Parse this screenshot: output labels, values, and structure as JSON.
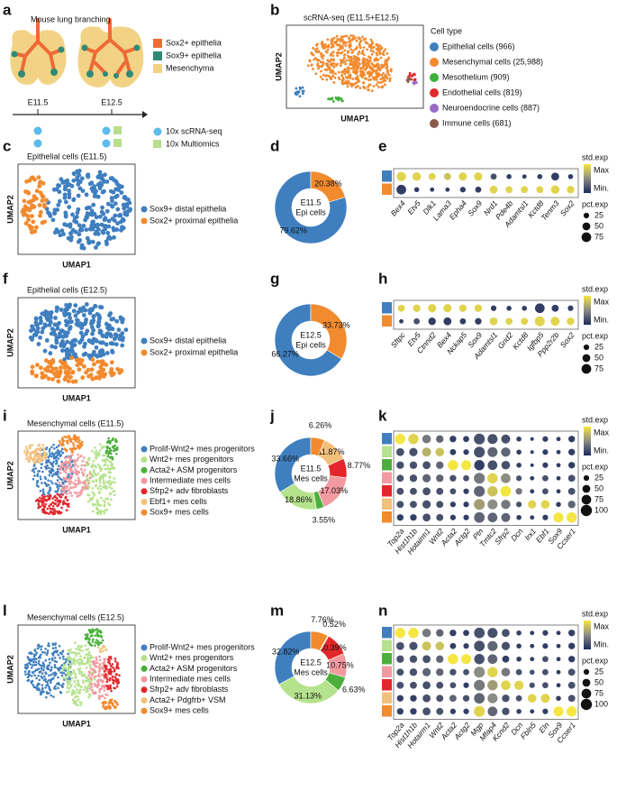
{
  "panel_labels": [
    "a",
    "b",
    "c",
    "d",
    "e",
    "f",
    "g",
    "h",
    "i",
    "j",
    "k",
    "l",
    "m",
    "n"
  ],
  "schematic": {
    "title": "Mouse lung branching",
    "legend": [
      {
        "label": "Sox2+ epithelia",
        "color": "#ee6a36"
      },
      {
        "label": "Sox9+ epithelia",
        "color": "#2f8a78"
      },
      {
        "label": "Mesenchyma",
        "color": "#f2d385"
      }
    ],
    "timepoints": [
      "E11.5",
      "E12.5"
    ],
    "assays": [
      {
        "label": "10x scRNA-seq",
        "color": "#5bbbea"
      },
      {
        "label": "10x Multiomics",
        "color": "#b8de8e"
      }
    ]
  },
  "umap_panels": [
    {
      "title": "scRNA-seq (E11.5+E12.5)",
      "x_label": "UMAP1",
      "y_label": "UMAP2",
      "legend_title": "Cell type",
      "legend": [
        {
          "label": "Epithelial cells (966)",
          "color": "#3f7fbf"
        },
        {
          "label": "Mesenchymal cells (25,988)",
          "color": "#f28a2e"
        },
        {
          "label": "Mesothelium (909)",
          "color": "#3fae3a"
        },
        {
          "label": "Endothelial cells (819)",
          "color": "#e02b2b"
        },
        {
          "label": "Neuroendocrine cells (887)",
          "color": "#9b6bc8"
        },
        {
          "label": "Immune cells (681)",
          "color": "#8c5a4a"
        }
      ]
    },
    {
      "title": "Epithelial cells (E11.5)",
      "x_label": "UMAP1",
      "y_label": "UMAP2",
      "legend": [
        {
          "label": "Sox9+ distal epithelia",
          "color": "#3f7fbf"
        },
        {
          "label": "Sox2+ proximal epithelia",
          "color": "#f28a2e"
        }
      ]
    },
    {
      "title": "Epithelial cells (E12.5)",
      "x_label": "UMAP1",
      "y_label": "UMAP2",
      "legend": [
        {
          "label": "Sox9+ distal epithelia",
          "color": "#3f7fbf"
        },
        {
          "label": "Sox2+ proximal epithelia",
          "color": "#f28a2e"
        }
      ]
    },
    {
      "title": "Mesenchymal cells (E11.5)",
      "x_label": "UMAP1",
      "y_label": "UMAP2",
      "legend": [
        {
          "label": "Prolif-Wnt2+ mes progenitors",
          "color": "#3f7fbf"
        },
        {
          "label": "Wnt2+ mes progenitors",
          "color": "#b5e28c"
        },
        {
          "label": "Acta2+ ASM progenitors",
          "color": "#4caf3c"
        },
        {
          "label": "Intermediate mes cells",
          "color": "#f29aa0"
        },
        {
          "label": "Sfrp2+ adv fibroblasts",
          "color": "#e3262b"
        },
        {
          "label": "Ebf1+ mes cells",
          "color": "#f3c07a"
        },
        {
          "label": "Sox9+ mes cells",
          "color": "#f28a2e"
        }
      ]
    },
    {
      "title": "Mesenchymal cells (E12.5)",
      "x_label": "UMAP1",
      "y_label": "UMAP2",
      "legend": [
        {
          "label": "Prolif-Wnt2+ mes progenitors",
          "color": "#3f7fbf"
        },
        {
          "label": "Wnt2+ mes progenitors",
          "color": "#b5e28c"
        },
        {
          "label": "Acta2+ ASM progenitors",
          "color": "#4caf3c"
        },
        {
          "label": "Intermediate mes cells",
          "color": "#f29aa0"
        },
        {
          "label": "Sfrp2+ adv fibroblasts",
          "color": "#e3262b"
        },
        {
          "label": "Acta2+ Pdgfrb+ VSM",
          "color": "#f3c07a"
        },
        {
          "label": "Sox9+ mes cells",
          "color": "#f28a2e"
        }
      ]
    }
  ],
  "chart_data": [
    {
      "type": "donut",
      "center_label": [
        "E11.5",
        "Epi cells"
      ],
      "values": [
        79.62,
        20.38
      ],
      "value_labels": [
        "79.62%",
        "20.38%"
      ],
      "colors": [
        "#3f7fbf",
        "#f28a2e"
      ]
    },
    {
      "type": "dotplot",
      "genes": [
        "Bex4",
        "Etv5",
        "Dlk1",
        "Lama3",
        "Epha4",
        "Sox9",
        "Nrd1",
        "Pde4b",
        "Adamtsl1",
        "Kctd8",
        "Tenm3",
        "Sox2"
      ],
      "row_colors": [
        "#3f7fbf",
        "#f28a2e"
      ],
      "expr": [
        [
          0.9,
          0.9,
          0.9,
          0.8,
          0.9,
          0.9,
          0.2,
          0.1,
          0.1,
          0.1,
          0.1,
          0.1
        ],
        [
          0.1,
          0.1,
          0.1,
          0.1,
          0.1,
          0.1,
          0.9,
          0.9,
          0.9,
          0.9,
          0.9,
          0.9
        ]
      ],
      "pct": [
        [
          70,
          60,
          40,
          40,
          55,
          55,
          30,
          20,
          15,
          20,
          50,
          20
        ],
        [
          75,
          20,
          15,
          15,
          25,
          30,
          50,
          40,
          40,
          40,
          60,
          45
        ]
      ],
      "color_lim": [
        0,
        1
      ],
      "size_lim": [
        0,
        100
      ],
      "color_legend_title": "std.exp",
      "color_legend_labels": [
        "Max",
        "Min."
      ],
      "size_legend_title": "pct.exp",
      "size_ticks": [
        25,
        50,
        75
      ]
    },
    {
      "type": "donut",
      "center_label": [
        "E12.5",
        "Epi cells"
      ],
      "values": [
        66.27,
        33.73
      ],
      "value_labels": [
        "66.27%",
        "33.73%"
      ],
      "colors": [
        "#3f7fbf",
        "#f28a2e"
      ]
    },
    {
      "type": "dotplot",
      "genes": [
        "Sftpc",
        "Etv5",
        "Ctnnd2",
        "Bex4",
        "Nckap5",
        "Sox9",
        "Adamtsl1",
        "Grid2",
        "Kctd8",
        "Igfbp5",
        "Ppp2r2b",
        "Sox2"
      ],
      "row_colors": [
        "#3f7fbf",
        "#f28a2e"
      ],
      "expr": [
        [
          0.9,
          0.9,
          0.9,
          0.9,
          0.9,
          0.9,
          0.1,
          0.1,
          0.1,
          0.1,
          0.1,
          0.1
        ],
        [
          0.1,
          0.2,
          0.1,
          0.1,
          0.1,
          0.1,
          0.9,
          0.9,
          0.9,
          0.9,
          0.9,
          0.9
        ]
      ],
      "pct": [
        [
          40,
          45,
          55,
          55,
          45,
          45,
          25,
          20,
          20,
          75,
          40,
          25
        ],
        [
          15,
          30,
          45,
          50,
          30,
          35,
          50,
          40,
          40,
          80,
          65,
          45
        ]
      ],
      "color_lim": [
        0,
        1
      ],
      "size_lim": [
        0,
        100
      ],
      "color_legend_title": "std.exp",
      "color_legend_labels": [
        "Max",
        "Min."
      ],
      "size_legend_title": "pct.exp",
      "size_ticks": [
        25,
        50,
        75
      ]
    },
    {
      "type": "donut",
      "center_label": [
        "E11.5",
        "Mes cells"
      ],
      "values": [
        33.66,
        18.86,
        3.55,
        17.03,
        8.77,
        11.87,
        6.26
      ],
      "value_labels": [
        "33.66%",
        "18.86%",
        "3.55%",
        "17.03%",
        "8.77%",
        "11.87%",
        "6.26%"
      ],
      "colors": [
        "#3f7fbf",
        "#b5e28c",
        "#4caf3c",
        "#f29aa0",
        "#e3262b",
        "#f3c07a",
        "#f28a2e"
      ]
    },
    {
      "type": "dotplot",
      "genes": [
        "Top2a",
        "Hist1h1b",
        "Hotairm1",
        "Wnt2",
        "Acta2",
        "Actg2",
        "Ptn",
        "Tmtc2",
        "Sfrp2",
        "Dcn",
        "Irx1",
        "Ebf1",
        "Sox9",
        "Ccser1"
      ],
      "row_colors": [
        "#3f7fbf",
        "#b5e28c",
        "#4caf3c",
        "#f29aa0",
        "#e3262b",
        "#f3c07a",
        "#f28a2e"
      ],
      "expr": [
        [
          1,
          0.9,
          0.4,
          0.3,
          0.1,
          0.1,
          0.2,
          0.2,
          0.2,
          0.1,
          0.1,
          0.1,
          0.1,
          0.1
        ],
        [
          0.2,
          0.2,
          0.7,
          0.8,
          0.1,
          0.1,
          0.2,
          0.3,
          0.3,
          0.1,
          0.1,
          0.1,
          0.1,
          0.1
        ],
        [
          0.2,
          0.2,
          0.2,
          0.3,
          1,
          1,
          0.1,
          0.2,
          0.2,
          0.1,
          0.1,
          0.1,
          0.1,
          0.1
        ],
        [
          0.2,
          0.2,
          0.3,
          0.3,
          0.2,
          0.2,
          0.4,
          0.9,
          0.5,
          0.2,
          0.1,
          0.2,
          0.1,
          0.2
        ],
        [
          0.2,
          0.2,
          0.2,
          0.2,
          0.2,
          0.1,
          0.3,
          0.8,
          1,
          0.4,
          0.1,
          0.2,
          0.1,
          0.2
        ],
        [
          0.2,
          0.2,
          0.2,
          0.2,
          0.1,
          0.1,
          0.6,
          0.5,
          0.4,
          0.2,
          0.9,
          0.9,
          0.1,
          0.3
        ],
        [
          0.1,
          0.1,
          0.2,
          0.2,
          0.1,
          0.1,
          0.3,
          0.3,
          0.3,
          0.1,
          0.1,
          0.1,
          1,
          1
        ]
      ],
      "pct": [
        [
          85,
          85,
          60,
          45,
          35,
          30,
          95,
          80,
          65,
          20,
          10,
          25,
          15,
          35
        ],
        [
          50,
          55,
          65,
          60,
          30,
          25,
          95,
          80,
          70,
          20,
          10,
          25,
          15,
          35
        ],
        [
          45,
          45,
          50,
          45,
          85,
          80,
          85,
          75,
          60,
          20,
          10,
          25,
          15,
          35
        ],
        [
          40,
          45,
          55,
          45,
          35,
          30,
          95,
          85,
          75,
          25,
          15,
          30,
          15,
          40
        ],
        [
          40,
          40,
          50,
          40,
          30,
          25,
          95,
          85,
          90,
          35,
          15,
          30,
          15,
          40
        ],
        [
          40,
          40,
          55,
          40,
          25,
          25,
          95,
          80,
          70,
          25,
          55,
          60,
          20,
          45
        ],
        [
          35,
          35,
          50,
          40,
          25,
          25,
          90,
          75,
          65,
          20,
          15,
          25,
          80,
          85
        ]
      ],
      "color_lim": [
        0,
        1
      ],
      "size_lim": [
        0,
        100
      ],
      "color_legend_title": "std.exp",
      "color_legend_labels": [
        "Max",
        "Min."
      ],
      "size_legend_title": "pct.exp",
      "size_ticks": [
        25,
        50,
        75,
        100
      ]
    },
    {
      "type": "donut",
      "center_label": [
        "E12.5",
        "Mes cells"
      ],
      "values": [
        32.82,
        31.13,
        6.63,
        10.75,
        10.39,
        0.52,
        7.76
      ],
      "value_labels": [
        "32.82%",
        "31.13%",
        "6.63%",
        "10.75%",
        "10.39%",
        "0.52%",
        "7.76%"
      ],
      "colors": [
        "#3f7fbf",
        "#b5e28c",
        "#4caf3c",
        "#f29aa0",
        "#e3262b",
        "#f3c07a",
        "#f28a2e"
      ]
    },
    {
      "type": "dotplot",
      "genes": [
        "Top2a",
        "Hist1h1b",
        "Hotairm1",
        "Wnt2",
        "Acta2",
        "Actg2",
        "Mgp",
        "Mfap4",
        "Kcnd2",
        "Dcn",
        "Fbln5",
        "Eln",
        "Sox9",
        "Ccser1"
      ],
      "row_colors": [
        "#3f7fbf",
        "#b5e28c",
        "#4caf3c",
        "#f29aa0",
        "#e3262b",
        "#f3c07a",
        "#f28a2e"
      ],
      "expr": [
        [
          1,
          1,
          0.4,
          0.3,
          0.1,
          0.1,
          0.2,
          0.2,
          0.2,
          0.1,
          0.1,
          0.1,
          0.1,
          0.1
        ],
        [
          0.2,
          0.2,
          0.8,
          0.8,
          0.1,
          0.1,
          0.2,
          0.3,
          0.2,
          0.1,
          0.1,
          0.1,
          0.1,
          0.1
        ],
        [
          0.2,
          0.2,
          0.2,
          0.3,
          1,
          1,
          0.2,
          0.3,
          0.1,
          0.1,
          0.1,
          0.2,
          0.1,
          0.1
        ],
        [
          0.2,
          0.2,
          0.3,
          0.3,
          0.2,
          0.2,
          0.5,
          0.9,
          0.4,
          0.2,
          0.2,
          0.2,
          0.1,
          0.2
        ],
        [
          0.2,
          0.2,
          0.2,
          0.2,
          0.2,
          0.1,
          0.4,
          0.6,
          0.9,
          0.9,
          0.2,
          0.2,
          0.1,
          0.2
        ],
        [
          0.1,
          0.1,
          0.2,
          0.2,
          0.3,
          0.2,
          0.3,
          0.5,
          0.2,
          0.2,
          0.9,
          0.9,
          0.1,
          0.2
        ],
        [
          0.1,
          0.1,
          0.2,
          0.2,
          0.1,
          0.1,
          0.9,
          0.3,
          0.2,
          0.1,
          0.1,
          0.1,
          1,
          1
        ]
      ],
      "pct": [
        [
          85,
          85,
          60,
          45,
          35,
          30,
          90,
          80,
          50,
          20,
          15,
          25,
          15,
          35
        ],
        [
          50,
          55,
          65,
          60,
          30,
          25,
          90,
          80,
          55,
          20,
          15,
          25,
          15,
          35
        ],
        [
          45,
          45,
          50,
          45,
          85,
          80,
          85,
          75,
          40,
          20,
          15,
          30,
          15,
          35
        ],
        [
          40,
          45,
          55,
          45,
          35,
          30,
          95,
          85,
          60,
          30,
          20,
          30,
          15,
          40
        ],
        [
          40,
          40,
          50,
          40,
          30,
          25,
          95,
          85,
          75,
          70,
          25,
          30,
          15,
          40
        ],
        [
          35,
          35,
          50,
          40,
          40,
          35,
          90,
          80,
          45,
          30,
          60,
          65,
          20,
          40
        ],
        [
          35,
          35,
          50,
          40,
          25,
          25,
          95,
          75,
          45,
          20,
          15,
          25,
          80,
          85
        ]
      ],
      "color_lim": [
        0,
        1
      ],
      "size_lim": [
        0,
        100
      ],
      "color_legend_title": "std.exp",
      "color_legend_labels": [
        "Max",
        "Min."
      ],
      "size_legend_title": "pct.exp",
      "size_ticks": [
        25,
        50,
        75,
        100
      ]
    }
  ]
}
